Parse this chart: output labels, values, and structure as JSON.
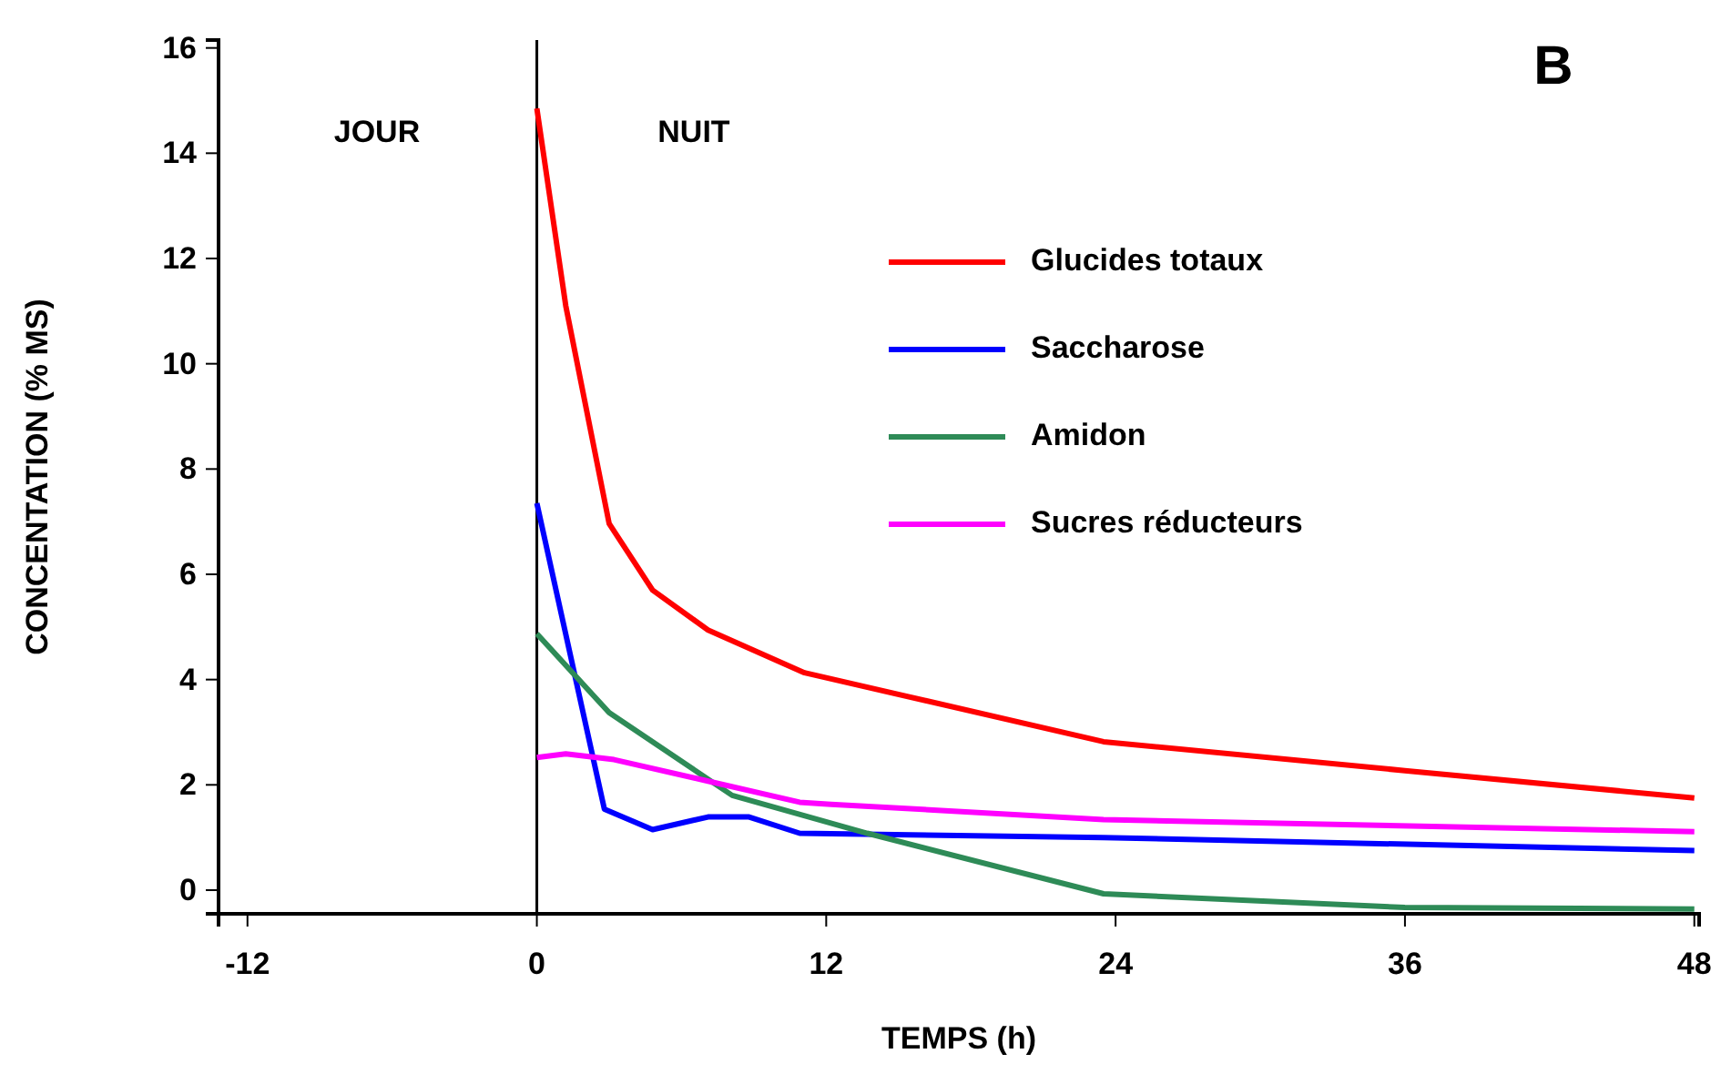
{
  "chart_data": {
    "type": "line",
    "xlabel": "TEMPS (h)",
    "ylabel": "CONCENTATION (% MS)",
    "xlim": [
      -13.2,
      48.2
    ],
    "ylim": [
      -0.45,
      16.15
    ],
    "xticks": [
      -12,
      0,
      12,
      24,
      36,
      48
    ],
    "yticks": [
      0,
      2,
      4,
      6,
      8,
      10,
      12,
      14,
      16
    ],
    "grid": false,
    "legend": "top right",
    "line_style": "solid",
    "marker": "none",
    "ref_lines": [
      {
        "axis": "x",
        "value": 0,
        "color": "#000000"
      }
    ],
    "annotations": [
      "JOUR",
      "NUIT",
      "B"
    ],
    "series": [
      {
        "name": "Glucides totaux",
        "color": "#ff0000",
        "x": [
          0,
          1.2,
          3,
          4.8,
          7.1,
          11.1,
          23.5,
          36,
          48
        ],
        "values": [
          14.85,
          11.1,
          6.96,
          5.7,
          4.94,
          4.13,
          2.82,
          2.27,
          1.75
        ]
      },
      {
        "name": "Saccharose",
        "color": "#0000ff",
        "x": [
          0,
          2.8,
          4.8,
          7.1,
          8.8,
          10.9,
          23.5,
          48
        ],
        "values": [
          7.35,
          1.54,
          1.15,
          1.39,
          1.39,
          1.08,
          1.0,
          0.75
        ]
      },
      {
        "name": "Amidon",
        "color": "#2e8b57",
        "x": [
          0,
          3,
          8.1,
          13.7,
          23.5,
          36,
          48
        ],
        "values": [
          4.87,
          3.37,
          1.8,
          1.08,
          -0.07,
          -0.33,
          -0.36
        ]
      },
      {
        "name": "Sucres réducteurs",
        "color": "#ff00ff",
        "x": [
          0,
          1.2,
          3.2,
          7.1,
          10.9,
          12.2,
          23.5,
          48
        ],
        "values": [
          2.52,
          2.59,
          2.48,
          2.07,
          1.67,
          1.63,
          1.34,
          1.11
        ]
      }
    ]
  }
}
